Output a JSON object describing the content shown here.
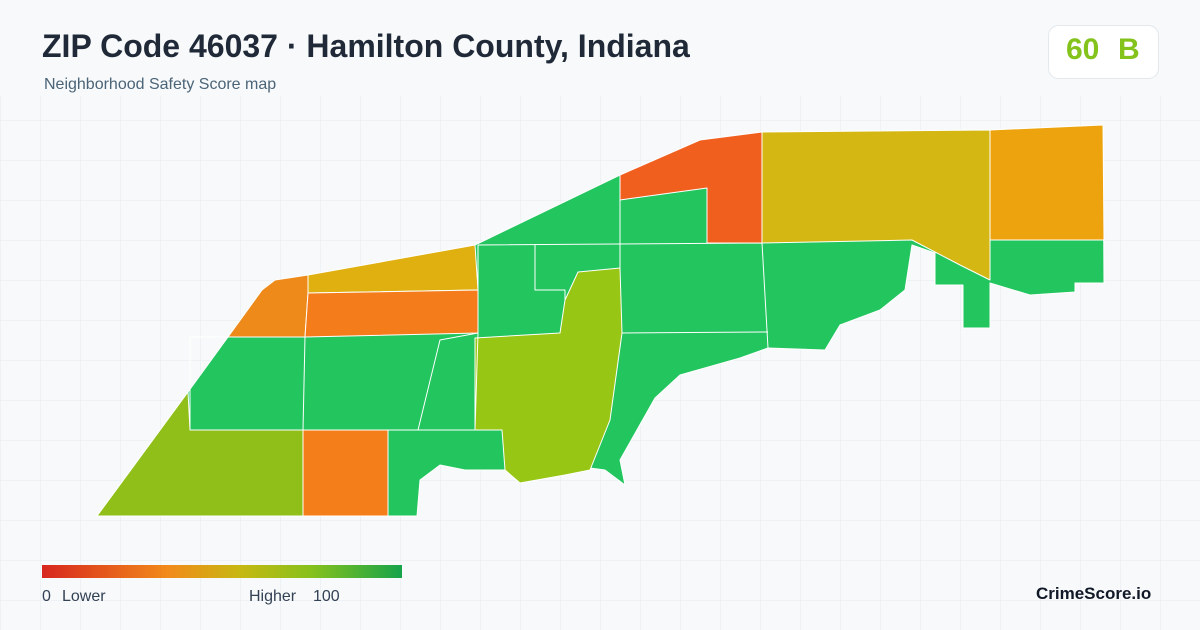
{
  "header": {
    "title": "ZIP Code 46037 · Hamilton County, Indiana",
    "subtitle": "Neighborhood Safety Score map"
  },
  "score": {
    "value": 60,
    "grade": "B"
  },
  "legend": {
    "min": 0,
    "min_label": "Lower",
    "max_label": "Higher",
    "max": 100
  },
  "brand": "CrimeScore.io"
}
